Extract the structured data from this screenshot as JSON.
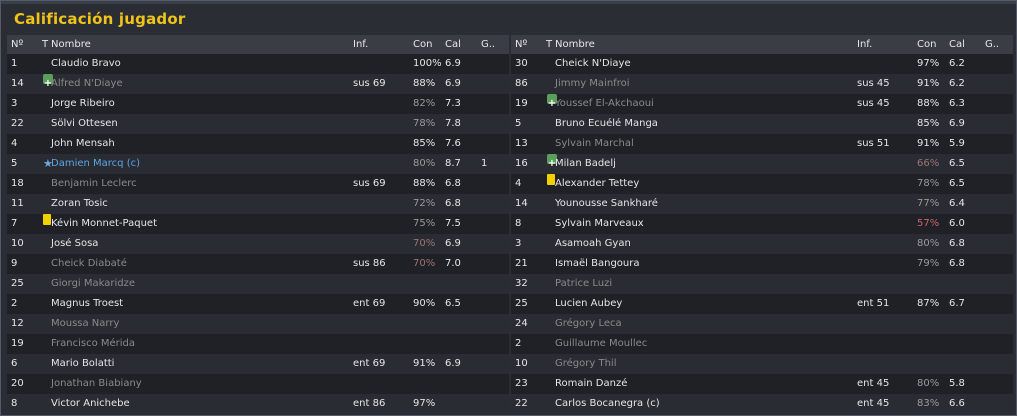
{
  "title": "Calificación jugador",
  "headers": {
    "num": "Nº",
    "t": "T",
    "name": "Nombre",
    "inf": "Inf.",
    "con": "Con",
    "cal": "Cal",
    "g": "G.."
  },
  "left_rows": [
    {
      "num": "1",
      "icon": "",
      "name": "Claudio Bravo",
      "inf": "",
      "con": "100%",
      "con_style": "",
      "cal": "6.9",
      "g": "",
      "dim": false,
      "captain": false
    },
    {
      "num": "14",
      "icon": "plus",
      "name": "Alfred N'Diaye",
      "inf": "sus 69",
      "con": "88%",
      "con_style": "",
      "cal": "6.9",
      "g": "",
      "dim": true,
      "captain": false
    },
    {
      "num": "3",
      "icon": "",
      "name": "Jorge Ribeiro",
      "inf": "",
      "con": "82%",
      "con_style": "pos",
      "cal": "7.3",
      "g": "",
      "dim": false,
      "captain": false
    },
    {
      "num": "22",
      "icon": "",
      "name": "Sölvi Ottesen",
      "inf": "",
      "con": "78%",
      "con_style": "pos",
      "cal": "7.8",
      "g": "",
      "dim": false,
      "captain": false
    },
    {
      "num": "4",
      "icon": "",
      "name": "John Mensah",
      "inf": "",
      "con": "85%",
      "con_style": "",
      "cal": "7.6",
      "g": "",
      "dim": false,
      "captain": false
    },
    {
      "num": "5",
      "icon": "star",
      "name": "Damien Marcq (c)",
      "inf": "",
      "con": "80%",
      "con_style": "pos",
      "cal": "8.7",
      "g": "1",
      "dim": false,
      "captain": true
    },
    {
      "num": "18",
      "icon": "",
      "name": "Benjamin Leclerc",
      "inf": "sus 69",
      "con": "88%",
      "con_style": "",
      "cal": "6.8",
      "g": "",
      "dim": true,
      "captain": false
    },
    {
      "num": "11",
      "icon": "",
      "name": "Zoran Tosic",
      "inf": "",
      "con": "72%",
      "con_style": "pos",
      "cal": "6.8",
      "g": "",
      "dim": false,
      "captain": false
    },
    {
      "num": "7",
      "icon": "yellow",
      "name": "Kévin Monnet-Paquet",
      "inf": "",
      "con": "75%",
      "con_style": "pos",
      "cal": "7.5",
      "g": "",
      "dim": false,
      "captain": false
    },
    {
      "num": "10",
      "icon": "",
      "name": "José Sosa",
      "inf": "",
      "con": "70%",
      "con_style": "neg2",
      "cal": "6.9",
      "g": "",
      "dim": false,
      "captain": false
    },
    {
      "num": "9",
      "icon": "",
      "name": "Cheick Diabaté",
      "inf": "sus 86",
      "con": "70%",
      "con_style": "neg2",
      "cal": "7.0",
      "g": "",
      "dim": true,
      "captain": false
    },
    {
      "num": "25",
      "icon": "",
      "name": "Giorgi Makaridze",
      "inf": "",
      "con": "",
      "con_style": "",
      "cal": "",
      "g": "",
      "dim": true,
      "captain": false
    },
    {
      "num": "2",
      "icon": "",
      "name": "Magnus Troest",
      "inf": "ent 69",
      "con": "90%",
      "con_style": "",
      "cal": "6.5",
      "g": "",
      "dim": false,
      "captain": false
    },
    {
      "num": "12",
      "icon": "",
      "name": "Moussa Narry",
      "inf": "",
      "con": "",
      "con_style": "",
      "cal": "",
      "g": "",
      "dim": true,
      "captain": false
    },
    {
      "num": "19",
      "icon": "",
      "name": "Francisco Mérida",
      "inf": "",
      "con": "",
      "con_style": "",
      "cal": "",
      "g": "",
      "dim": true,
      "captain": false
    },
    {
      "num": "6",
      "icon": "",
      "name": "Mario Bolatti",
      "inf": "ent 69",
      "con": "91%",
      "con_style": "",
      "cal": "6.9",
      "g": "",
      "dim": false,
      "captain": false
    },
    {
      "num": "20",
      "icon": "",
      "name": "Jonathan Biabiany",
      "inf": "",
      "con": "",
      "con_style": "",
      "cal": "",
      "g": "",
      "dim": true,
      "captain": false
    },
    {
      "num": "8",
      "icon": "",
      "name": "Victor Anichebe",
      "inf": "ent 86",
      "con": "97%",
      "con_style": "",
      "cal": "",
      "g": "",
      "dim": false,
      "captain": false
    }
  ],
  "right_rows": [
    {
      "num": "30",
      "icon": "",
      "name": "Cheick N'Diaye",
      "inf": "",
      "con": "97%",
      "con_style": "",
      "cal": "6.2",
      "g": "",
      "dim": false,
      "captain": false
    },
    {
      "num": "86",
      "icon": "",
      "name": "Jimmy Mainfroi",
      "inf": "sus 45",
      "con": "91%",
      "con_style": "",
      "cal": "6.2",
      "g": "",
      "dim": true,
      "captain": false
    },
    {
      "num": "19",
      "icon": "plus",
      "name": "Youssef El-Akchaoui",
      "inf": "sus 45",
      "con": "88%",
      "con_style": "",
      "cal": "6.3",
      "g": "",
      "dim": true,
      "captain": false
    },
    {
      "num": "5",
      "icon": "",
      "name": "Bruno Ecuélé Manga",
      "inf": "",
      "con": "85%",
      "con_style": "",
      "cal": "6.9",
      "g": "",
      "dim": false,
      "captain": false
    },
    {
      "num": "13",
      "icon": "",
      "name": "Sylvain Marchal",
      "inf": "sus 51",
      "con": "91%",
      "con_style": "",
      "cal": "5.9",
      "g": "",
      "dim": true,
      "captain": false
    },
    {
      "num": "16",
      "icon": "plus",
      "name": "Milan Badelj",
      "inf": "",
      "con": "66%",
      "con_style": "neg2",
      "cal": "6.5",
      "g": "",
      "dim": false,
      "captain": false
    },
    {
      "num": "4",
      "icon": "yellow",
      "name": "Alexander Tettey",
      "inf": "",
      "con": "78%",
      "con_style": "pos",
      "cal": "6.5",
      "g": "",
      "dim": false,
      "captain": false
    },
    {
      "num": "14",
      "icon": "",
      "name": "Younousse Sankharé",
      "inf": "",
      "con": "77%",
      "con_style": "pos",
      "cal": "6.4",
      "g": "",
      "dim": false,
      "captain": false
    },
    {
      "num": "8",
      "icon": "",
      "name": "Sylvain Marveaux",
      "inf": "",
      "con": "57%",
      "con_style": "neg",
      "cal": "6.0",
      "g": "",
      "dim": false,
      "captain": false
    },
    {
      "num": "3",
      "icon": "",
      "name": "Asamoah Gyan",
      "inf": "",
      "con": "80%",
      "con_style": "pos",
      "cal": "6.8",
      "g": "",
      "dim": false,
      "captain": false
    },
    {
      "num": "21",
      "icon": "",
      "name": "Ismaël Bangoura",
      "inf": "",
      "con": "79%",
      "con_style": "pos",
      "cal": "6.8",
      "g": "",
      "dim": false,
      "captain": false
    },
    {
      "num": "32",
      "icon": "",
      "name": "Patrice Luzi",
      "inf": "",
      "con": "",
      "con_style": "",
      "cal": "",
      "g": "",
      "dim": true,
      "captain": false
    },
    {
      "num": "25",
      "icon": "",
      "name": "Lucien Aubey",
      "inf": "ent 51",
      "con": "87%",
      "con_style": "",
      "cal": "6.7",
      "g": "",
      "dim": false,
      "captain": false
    },
    {
      "num": "24",
      "icon": "",
      "name": "Grégory Leca",
      "inf": "",
      "con": "",
      "con_style": "",
      "cal": "",
      "g": "",
      "dim": true,
      "captain": false
    },
    {
      "num": "2",
      "icon": "",
      "name": "Guillaume Moullec",
      "inf": "",
      "con": "",
      "con_style": "",
      "cal": "",
      "g": "",
      "dim": true,
      "captain": false
    },
    {
      "num": "10",
      "icon": "",
      "name": "Grégory Thil",
      "inf": "",
      "con": "",
      "con_style": "",
      "cal": "",
      "g": "",
      "dim": true,
      "captain": false
    },
    {
      "num": "23",
      "icon": "",
      "name": "Romain Danzé",
      "inf": "ent 45",
      "con": "80%",
      "con_style": "pos",
      "cal": "5.8",
      "g": "",
      "dim": false,
      "captain": false
    },
    {
      "num": "22",
      "icon": "",
      "name": "Carlos Bocanegra (c)",
      "inf": "ent 45",
      "con": "83%",
      "con_style": "pos",
      "cal": "6.6",
      "g": "",
      "dim": false,
      "captain": false
    }
  ],
  "icons": {
    "plus": "substitution-in-icon",
    "yellow": "yellow-card-icon",
    "star": "star-icon"
  },
  "colors": {
    "title": "#f0c419",
    "captain": "#5aa5e6",
    "low_condition": "#c96464"
  }
}
